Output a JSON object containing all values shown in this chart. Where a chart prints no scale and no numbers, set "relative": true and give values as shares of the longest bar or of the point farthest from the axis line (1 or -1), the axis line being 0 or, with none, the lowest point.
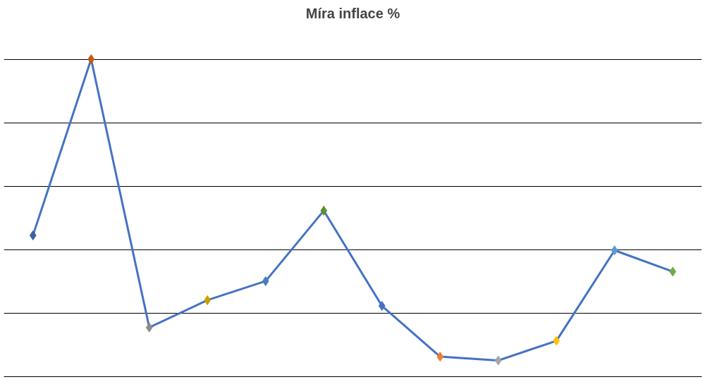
{
  "chart_data": {
    "type": "line",
    "title": "Míra inflace %",
    "relative": true,
    "categories": [
      null,
      null,
      null,
      null,
      null,
      null,
      null,
      null,
      null,
      null,
      null,
      null
    ],
    "series": [
      {
        "color": "#4472c4",
        "values": [
          0.445,
          1,
          0.155,
          0.241,
          0.301,
          0.523,
          0.223,
          0.063,
          0.051,
          0.113,
          0.398,
          0.331
        ],
        "colors": [
          "#3c5fa0",
          "#c55a11",
          "#8c8c8c",
          "#c9a000",
          "#4a7cbf",
          "#5b8f32",
          "#4472c4",
          "#ed7d31",
          "#a5a5a5",
          "#ffc000",
          "#5b9bd5",
          "#70ad47"
        ]
      }
    ],
    "marker": "diamond",
    "grid": "y"
  }
}
